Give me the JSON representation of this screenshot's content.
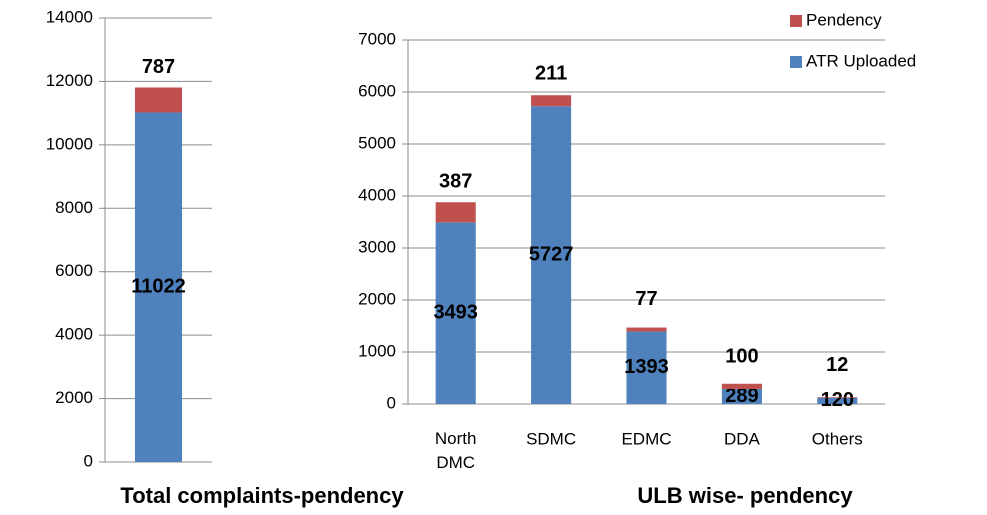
{
  "chart_data": [
    {
      "type": "bar",
      "stacked": true,
      "title": "Total complaints-pendency",
      "categories": [
        null
      ],
      "series": [
        {
          "color": "#4f81bd",
          "values": [
            11022
          ]
        },
        {
          "color": "#c0504d",
          "values": [
            787
          ]
        }
      ],
      "ylim": [
        0,
        14000
      ],
      "yticks": [
        0,
        2000,
        4000,
        6000,
        8000,
        10000,
        12000,
        14000
      ],
      "grid": true
    },
    {
      "type": "bar",
      "stacked": true,
      "title": "ULB wise- pendency",
      "categories": [
        "North DMC",
        "SDMC",
        "EDMC",
        "DDA",
        "Others"
      ],
      "series": [
        {
          "name": "ATR Uploaded",
          "color": "#4f81bd",
          "values": [
            3493,
            5727,
            1393,
            289,
            120
          ]
        },
        {
          "name": "Pendency",
          "color": "#c0504d",
          "values": [
            387,
            211,
            77,
            100,
            12
          ]
        }
      ],
      "ylim": [
        0,
        7000
      ],
      "yticks": [
        0,
        1000,
        2000,
        3000,
        4000,
        5000,
        6000,
        7000
      ],
      "grid": true,
      "legend": "top-right"
    }
  ]
}
